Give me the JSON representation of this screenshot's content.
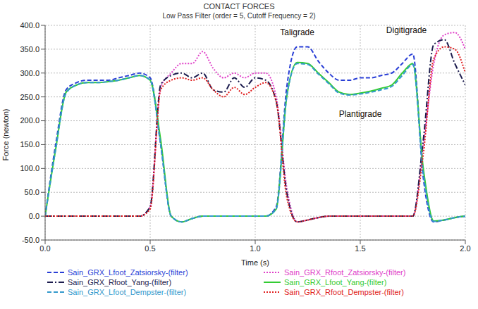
{
  "chart_data": {
    "type": "line",
    "title": "CONTACT FORCES",
    "subtitle": "Low Pass Filter (order = 5, Cutoff Frequency = 2)",
    "x_label": "Time (s)",
    "y_label": "Force (newton)",
    "x": [
      0,
      0.05,
      0.1,
      0.15,
      0.2,
      0.25,
      0.3,
      0.35,
      0.4,
      0.45,
      0.5,
      0.55,
      0.6,
      0.65,
      0.7,
      0.75,
      0.8,
      0.85,
      0.9,
      0.95,
      1.0,
      1.05,
      1.1,
      1.15,
      1.2,
      1.25,
      1.3,
      1.35,
      1.4,
      1.45,
      1.5,
      1.55,
      1.6,
      1.65,
      1.7,
      1.75,
      1.8,
      1.85,
      1.9,
      1.95,
      2.0
    ],
    "xlim": [
      0,
      2
    ],
    "xticks": [
      {
        "value": 0,
        "label": "0.0"
      },
      {
        "value": 0.5,
        "label": "0.5"
      },
      {
        "value": 1,
        "label": "1.0"
      },
      {
        "value": 1.5,
        "label": "1.5"
      },
      {
        "value": 2,
        "label": "2.0"
      }
    ],
    "ylim": [
      -50,
      400
    ],
    "yticks": [
      {
        "value": -50,
        "label": "-50.0"
      },
      {
        "value": 0,
        "label": "0.0"
      },
      {
        "value": 50,
        "label": "50.0"
      },
      {
        "value": 100,
        "label": "100.0"
      },
      {
        "value": 150,
        "label": "150.0"
      },
      {
        "value": 200,
        "label": "200.0"
      },
      {
        "value": 250,
        "label": "250.0"
      },
      {
        "value": 300,
        "label": "300.0"
      },
      {
        "value": 350,
        "label": "350.0"
      },
      {
        "value": 400,
        "label": "400.0"
      }
    ],
    "grid": true,
    "legend": "bottom",
    "series": [
      {
        "name": "Sain_GRX_Lfoot_Zatsiorsky-(filter)",
        "color": "#2a3fd6",
        "line_style": "dashed",
        "values": [
          0,
          150,
          265,
          280,
          285,
          285,
          285,
          290,
          295,
          300,
          290,
          150,
          0,
          -12,
          -5,
          0,
          0,
          0,
          0,
          0,
          0,
          0,
          20,
          270,
          355,
          355,
          325,
          300,
          285,
          285,
          290,
          290,
          295,
          300,
          320,
          340,
          80,
          -12,
          -8,
          -3,
          0
        ]
      },
      {
        "name": "Sain_GRX_Rfoot_Zatsiorsky-(filter)",
        "color": "#e040c8",
        "line_style": "dotted",
        "values": [
          0,
          0,
          0,
          0,
          0,
          0,
          0,
          0,
          0,
          0,
          20,
          270,
          300,
          320,
          320,
          345,
          310,
          290,
          300,
          290,
          300,
          300,
          250,
          60,
          -12,
          -8,
          -3,
          0,
          0,
          0,
          0,
          0,
          0,
          0,
          0,
          0,
          150,
          320,
          380,
          385,
          350
        ]
      },
      {
        "name": "Sain_GRX_Rfoot_Yang-(filter)",
        "color": "#1c1c4e",
        "line_style": "dashdot",
        "values": [
          0,
          0,
          0,
          0,
          0,
          0,
          0,
          0,
          0,
          0,
          20,
          275,
          295,
          300,
          290,
          300,
          265,
          260,
          290,
          270,
          290,
          285,
          240,
          50,
          -12,
          -8,
          -3,
          0,
          0,
          0,
          0,
          0,
          0,
          0,
          0,
          0,
          160,
          360,
          370,
          320,
          275
        ]
      },
      {
        "name": "Sain_GRX_Lfoot_Yang-(filter)",
        "color": "#33cc33",
        "line_style": "solid",
        "values": [
          0,
          140,
          260,
          275,
          280,
          280,
          282,
          285,
          290,
          295,
          285,
          160,
          0,
          -12,
          -5,
          0,
          0,
          0,
          0,
          0,
          0,
          0,
          15,
          250,
          322,
          320,
          300,
          280,
          260,
          255,
          258,
          262,
          268,
          275,
          300,
          320,
          100,
          -10,
          -8,
          -3,
          0
        ]
      },
      {
        "name": "Sain_GRX_Lfoot_Dempster-(filter)",
        "color": "#3399cc",
        "line_style": "dashed",
        "values": [
          0,
          140,
          258,
          275,
          280,
          280,
          282,
          285,
          290,
          295,
          285,
          150,
          0,
          -12,
          -5,
          0,
          0,
          0,
          0,
          0,
          0,
          0,
          15,
          250,
          320,
          318,
          298,
          278,
          258,
          254,
          256,
          260,
          265,
          272,
          295,
          318,
          90,
          -11,
          -8,
          -3,
          0
        ]
      },
      {
        "name": "Sain_GRX_Rfoot_Dempster-(filter)",
        "color": "#e02020",
        "line_style": "dotted",
        "values": [
          0,
          0,
          0,
          0,
          0,
          0,
          0,
          0,
          0,
          0,
          15,
          265,
          285,
          290,
          285,
          290,
          265,
          250,
          270,
          255,
          270,
          280,
          240,
          40,
          -12,
          -8,
          -3,
          0,
          0,
          0,
          0,
          0,
          0,
          0,
          0,
          0,
          130,
          330,
          355,
          350,
          300
        ]
      }
    ],
    "annotations": [
      {
        "text": "Taligrade",
        "x": 1.2,
        "y": 385
      },
      {
        "text": "Digitigrade",
        "x": 1.72,
        "y": 390
      },
      {
        "text": "Plantigrade",
        "x": 1.5,
        "y": 215
      }
    ]
  }
}
